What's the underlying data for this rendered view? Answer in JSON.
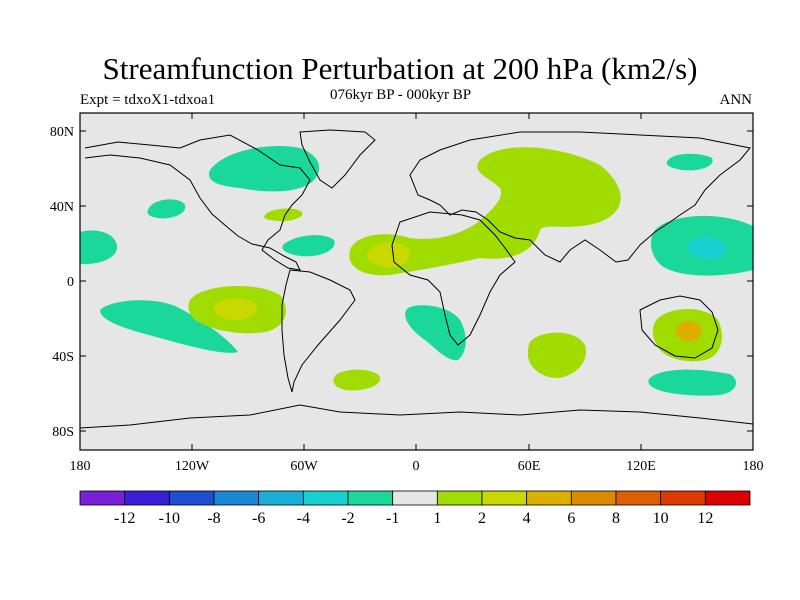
{
  "title": "Streamfunction Perturbation at 200 hPa (km2/s)",
  "left_subtitle": "Expt = tdxoX1-tdxoa1",
  "center_subtitle": "076kyr BP - 000kyr BP",
  "right_subtitle": "ANN",
  "axes": {
    "lat_ticks": [
      "80N",
      "40N",
      "0",
      "40S",
      "80S"
    ],
    "lon_ticks": [
      "180",
      "120W",
      "60W",
      "0",
      "60E",
      "120E",
      "180"
    ]
  },
  "colorbar": {
    "labels": [
      "-12",
      "-10",
      "-8",
      "-6",
      "-4",
      "-2",
      "-1",
      "1",
      "2",
      "4",
      "6",
      "8",
      "10",
      "12"
    ],
    "colors": [
      "#7a1fd8",
      "#3a1fd8",
      "#1f4fd0",
      "#1a86d8",
      "#19b0d8",
      "#19d0d0",
      "#1ad89a",
      "#e6e6e6",
      "#a0dc00",
      "#c8d800",
      "#dcb000",
      "#dc8a00",
      "#dc6000",
      "#dc3a00",
      "#dc0000"
    ]
  },
  "colors": {
    "background": "#e6e6e6",
    "neg_1": "#1ad89a",
    "neg_2": "#19d0d0",
    "pos_1": "#a0dc00",
    "pos_2": "#c8d800",
    "pos_3": "#dcb000"
  }
}
